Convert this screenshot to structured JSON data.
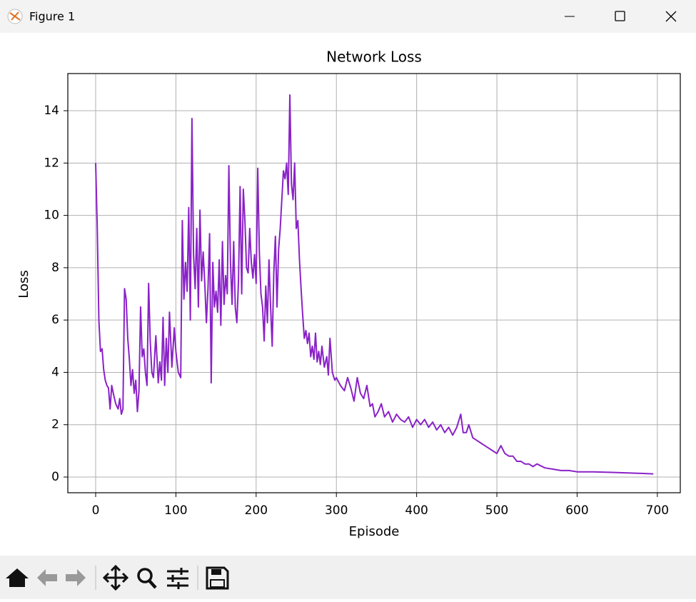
{
  "window": {
    "title": "Figure 1"
  },
  "chart_data": {
    "type": "line",
    "title": "Network Loss",
    "x_label": "Episode",
    "y_label": "Loss",
    "x": [
      0,
      2,
      4,
      6,
      8,
      10,
      12,
      14,
      16,
      18,
      20,
      22,
      25,
      28,
      30,
      32,
      34,
      36,
      38,
      40,
      42,
      44,
      46,
      48,
      50,
      52,
      54,
      56,
      58,
      60,
      62,
      64,
      66,
      68,
      70,
      72,
      75,
      78,
      80,
      82,
      84,
      86,
      88,
      90,
      92,
      95,
      98,
      100,
      103,
      106,
      108,
      110,
      112,
      114,
      116,
      118,
      120,
      122,
      124,
      126,
      128,
      130,
      132,
      134,
      136,
      138,
      140,
      142,
      144,
      146,
      148,
      150,
      152,
      154,
      156,
      158,
      160,
      162,
      164,
      166,
      168,
      170,
      172,
      174,
      176,
      178,
      180,
      182,
      184,
      186,
      188,
      190,
      192,
      194,
      196,
      198,
      200,
      202,
      204,
      206,
      208,
      210,
      212,
      214,
      216,
      218,
      220,
      222,
      224,
      226,
      228,
      230,
      232,
      234,
      236,
      238,
      240,
      242,
      244,
      246,
      248,
      250,
      252,
      254,
      256,
      258,
      260,
      262,
      264,
      266,
      268,
      270,
      272,
      274,
      276,
      278,
      280,
      282,
      285,
      288,
      290,
      292,
      295,
      298,
      300,
      305,
      310,
      314,
      318,
      322,
      326,
      330,
      334,
      338,
      342,
      345,
      348,
      352,
      356,
      360,
      365,
      370,
      375,
      380,
      385,
      390,
      395,
      400,
      405,
      410,
      415,
      420,
      425,
      430,
      435,
      440,
      445,
      450,
      455,
      458,
      462,
      465,
      470,
      475,
      480,
      485,
      490,
      495,
      500,
      505,
      510,
      515,
      520,
      525,
      530,
      535,
      540,
      545,
      550,
      560,
      570,
      580,
      590,
      600,
      610,
      620,
      640,
      660,
      680,
      695
    ],
    "values": [
      12.0,
      9.5,
      6.0,
      4.8,
      4.9,
      4.1,
      3.7,
      3.5,
      3.4,
      2.6,
      3.5,
      3.2,
      2.8,
      2.6,
      3.0,
      2.4,
      2.6,
      7.2,
      6.8,
      5.3,
      4.5,
      3.5,
      4.1,
      3.2,
      3.7,
      2.5,
      3.3,
      6.5,
      4.6,
      4.9,
      4.0,
      3.5,
      7.4,
      5.2,
      4.0,
      3.8,
      5.4,
      3.6,
      4.4,
      3.7,
      6.1,
      3.5,
      5.3,
      4.0,
      6.3,
      4.2,
      5.7,
      4.8,
      4.0,
      3.8,
      9.8,
      6.8,
      8.2,
      7.1,
      10.3,
      6.0,
      13.7,
      8.5,
      7.2,
      9.5,
      6.5,
      10.2,
      7.5,
      8.6,
      7.4,
      5.9,
      7.2,
      9.3,
      3.6,
      8.2,
      6.5,
      7.1,
      6.3,
      8.3,
      5.8,
      9.0,
      6.6,
      7.7,
      7.0,
      11.9,
      8.2,
      6.6,
      9.0,
      6.5,
      5.9,
      7.5,
      11.1,
      7.0,
      11.0,
      9.8,
      8.0,
      7.8,
      9.5,
      8.2,
      7.6,
      8.5,
      7.4,
      11.8,
      8.6,
      7.0,
      6.5,
      5.2,
      7.3,
      5.9,
      8.3,
      6.5,
      5.0,
      7.8,
      9.2,
      6.5,
      8.7,
      9.5,
      10.6,
      11.7,
      11.4,
      12.0,
      10.8,
      14.6,
      11.2,
      10.6,
      12.0,
      9.5,
      9.8,
      8.3,
      7.2,
      6.2,
      5.3,
      5.6,
      5.1,
      5.5,
      4.6,
      5.0,
      4.5,
      5.5,
      4.4,
      4.8,
      4.3,
      5.0,
      4.2,
      4.6,
      3.9,
      5.3,
      4.0,
      3.7,
      3.8,
      3.5,
      3.3,
      3.8,
      3.4,
      2.9,
      3.8,
      3.2,
      3.0,
      3.5,
      2.7,
      2.8,
      2.3,
      2.5,
      2.8,
      2.3,
      2.5,
      2.1,
      2.4,
      2.2,
      2.1,
      2.3,
      1.9,
      2.2,
      2.0,
      2.2,
      1.9,
      2.1,
      1.8,
      2.0,
      1.7,
      1.9,
      1.6,
      1.9,
      2.4,
      1.7,
      1.7,
      2.0,
      1.5,
      1.4,
      1.3,
      1.2,
      1.1,
      1.0,
      0.9,
      1.2,
      0.9,
      0.8,
      0.8,
      0.6,
      0.6,
      0.5,
      0.5,
      0.4,
      0.5,
      0.35,
      0.3,
      0.25,
      0.25,
      0.2,
      0.2,
      0.2,
      0.18,
      0.16,
      0.14,
      0.12
    ],
    "color": "#8a22c7",
    "xlim": [
      -34.7,
      728.6
    ],
    "ylim": [
      -0.6,
      15.42
    ],
    "xticks": [
      0,
      100,
      200,
      300,
      400,
      500,
      600,
      700
    ],
    "yticks": [
      0,
      2,
      4,
      6,
      8,
      10,
      12,
      14
    ],
    "grid": true
  }
}
